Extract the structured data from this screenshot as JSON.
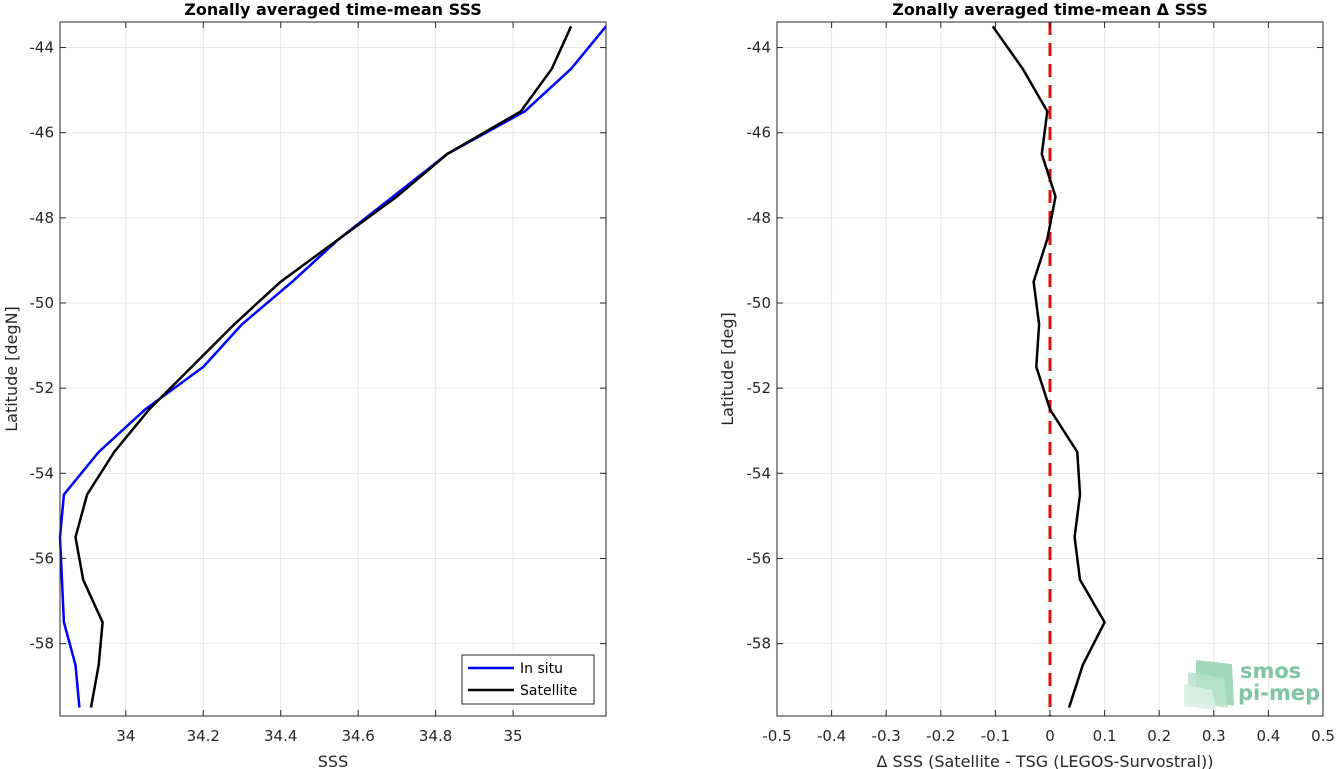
{
  "chart_data": [
    {
      "type": "line",
      "title": "Zonally averaged time-mean SSS",
      "xlabel": "SSS",
      "ylabel": "Latitude [degN]",
      "xlim": [
        33.83,
        35.24
      ],
      "ylim": [
        -59.7,
        -43.4
      ],
      "xticks": [
        34,
        34.2,
        34.4,
        34.6,
        34.8,
        35
      ],
      "yticks": [
        -58,
        -56,
        -54,
        -52,
        -50,
        -48,
        -46,
        -44
      ],
      "grid": true,
      "legend_position": "bottom-right",
      "series": [
        {
          "name": "In situ",
          "color": "#0000ff",
          "x": [
            35.24,
            35.15,
            35.03,
            34.83,
            34.69,
            34.55,
            34.43,
            34.3,
            34.2,
            34.05,
            33.93,
            33.84,
            33.83,
            33.84,
            33.87,
            33.88
          ],
          "y": [
            -43.5,
            -44.5,
            -45.5,
            -46.5,
            -47.5,
            -48.5,
            -49.5,
            -50.5,
            -51.5,
            -52.5,
            -53.5,
            -54.5,
            -55.5,
            -57.5,
            -58.5,
            -59.5
          ]
        },
        {
          "name": "Satellite",
          "color": "#000000",
          "x": [
            35.15,
            35.1,
            35.02,
            34.83,
            34.7,
            34.55,
            34.4,
            34.28,
            34.17,
            34.06,
            33.97,
            33.9,
            33.87,
            33.89,
            33.94,
            33.93,
            33.91
          ],
          "y": [
            -43.5,
            -44.5,
            -45.5,
            -46.5,
            -47.5,
            -48.5,
            -49.5,
            -50.5,
            -51.5,
            -52.5,
            -53.5,
            -54.5,
            -55.5,
            -56.5,
            -57.5,
            -58.5,
            -59.5
          ]
        }
      ]
    },
    {
      "type": "line",
      "title": "Zonally averaged time-mean Δ SSS",
      "xlabel": "Δ SSS (Satellite - TSG (LEGOS-Survostral))",
      "ylabel": "Latitude [deg]",
      "xlim": [
        -0.5,
        0.5
      ],
      "ylim": [
        -59.7,
        -43.4
      ],
      "xticks": [
        -0.5,
        -0.4,
        -0.3,
        -0.2,
        -0.1,
        0,
        0.1,
        0.2,
        0.3,
        0.4,
        0.5
      ],
      "yticks": [
        -58,
        -56,
        -54,
        -52,
        -50,
        -48,
        -46,
        -44
      ],
      "grid": true,
      "reference_line": {
        "x": 0,
        "color": "#e01010",
        "style": "dashed"
      },
      "series": [
        {
          "color": "#000000",
          "x": [
            -0.105,
            -0.05,
            -0.005,
            -0.015,
            0.01,
            -0.005,
            -0.03,
            -0.02,
            -0.025,
            0.0,
            0.05,
            0.055,
            0.045,
            0.055,
            0.1,
            0.06,
            0.035
          ],
          "y": [
            -43.5,
            -44.5,
            -45.5,
            -46.5,
            -47.5,
            -48.5,
            -49.5,
            -50.5,
            -51.5,
            -52.5,
            -53.5,
            -54.5,
            -55.5,
            -56.5,
            -57.5,
            -58.5,
            -59.5
          ]
        }
      ]
    }
  ],
  "logo": {
    "line1": "smos",
    "line2": "pi-mep",
    "color": "#7fc4a6"
  }
}
